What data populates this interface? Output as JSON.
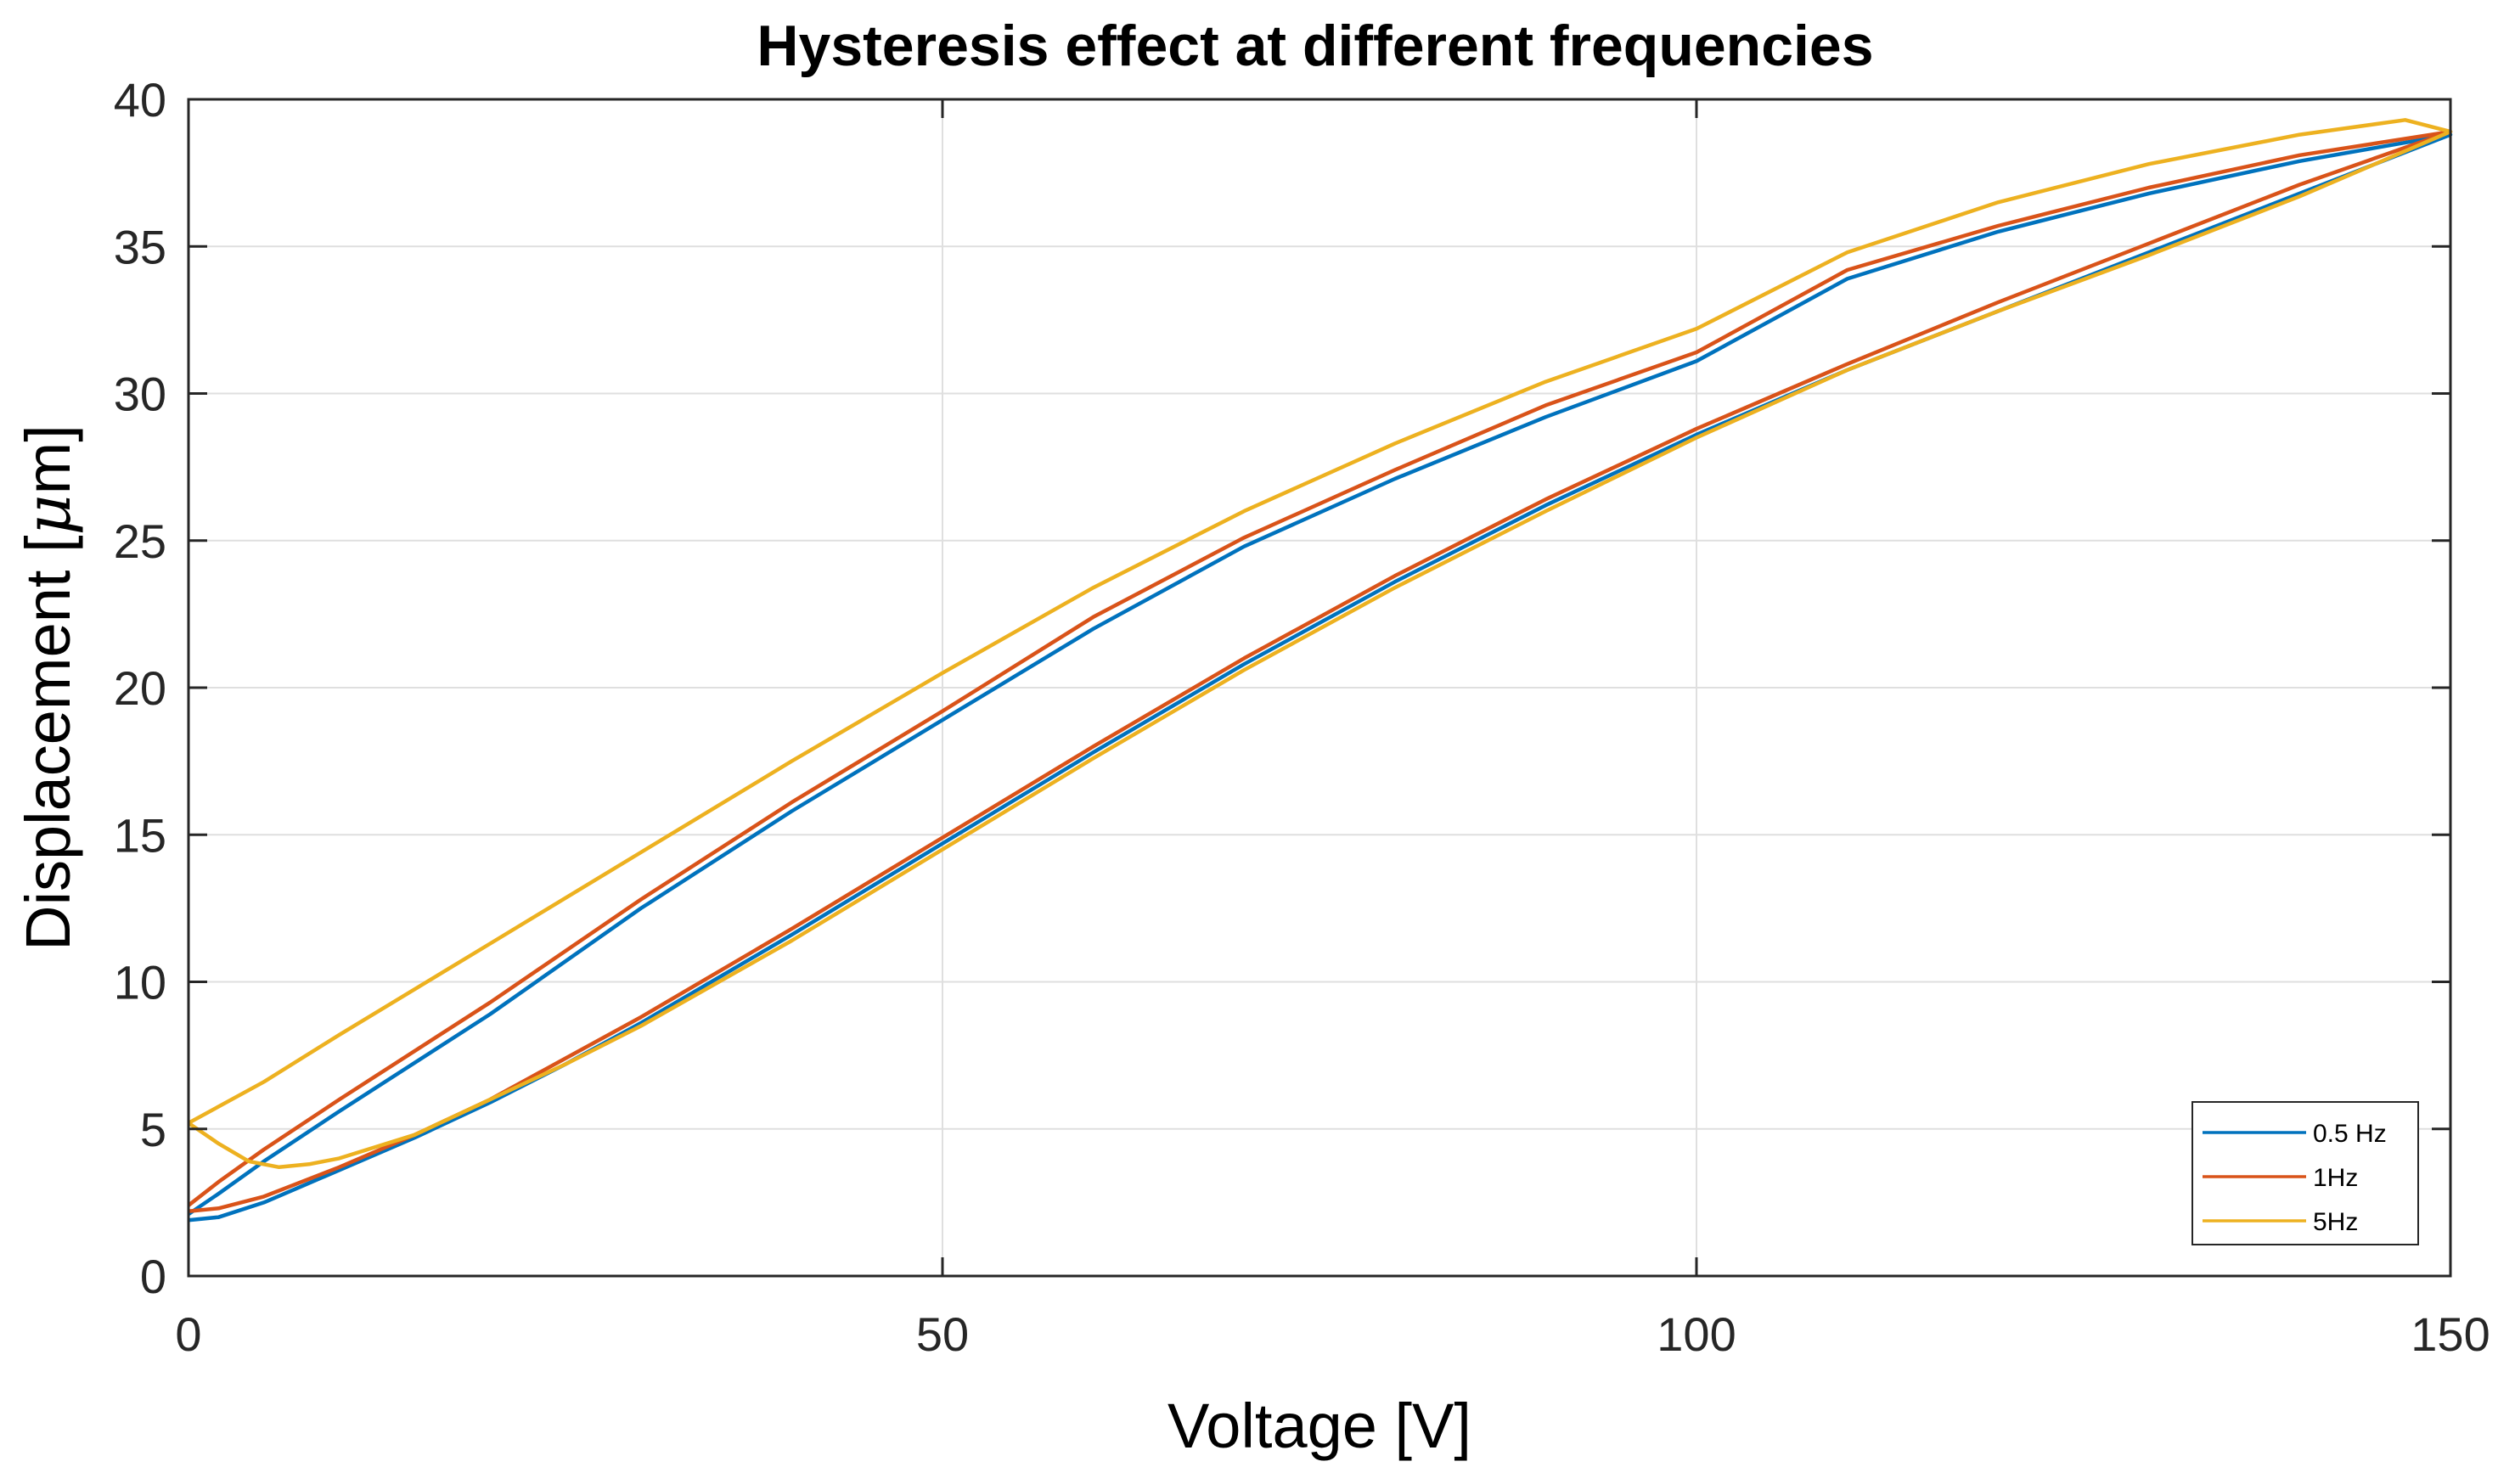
{
  "chart_data": {
    "type": "line",
    "title": "Hysteresis effect at different frequencies",
    "xlabel": "Voltage [V]",
    "ylabel_parts": {
      "prefix": "Displacement [",
      "mu": "μ",
      "suffix": "m]"
    },
    "xlim": [
      0,
      150
    ],
    "ylim": [
      0,
      40
    ],
    "xticks": [
      0,
      50,
      100,
      150
    ],
    "xtick_labels": [
      "0",
      "50",
      "100",
      "150"
    ],
    "yticks": [
      0,
      5,
      10,
      15,
      20,
      25,
      30,
      35,
      40
    ],
    "ytick_labels": [
      "0",
      "5",
      "10",
      "15",
      "20",
      "25",
      "30",
      "35",
      "40"
    ],
    "grid": true,
    "legend_location": "bottom-right",
    "series": [
      {
        "name": "0.5 Hz",
        "color": "#0072BD",
        "ascending": {
          "x": [
            0,
            2,
            5,
            10,
            15,
            20,
            25,
            30,
            40,
            50,
            60,
            70,
            80,
            90,
            100,
            110,
            120,
            130,
            140,
            150
          ],
          "y": [
            1.9,
            2.0,
            2.5,
            3.6,
            4.7,
            5.9,
            7.2,
            8.6,
            11.6,
            14.7,
            17.8,
            20.8,
            23.6,
            26.2,
            28.6,
            30.8,
            32.8,
            34.8,
            36.8,
            38.8
          ]
        },
        "descending": {
          "x": [
            150,
            140,
            130,
            120,
            110,
            100,
            90,
            80,
            70,
            60,
            50,
            40,
            30,
            20,
            10,
            5,
            2,
            0
          ],
          "y": [
            38.8,
            37.9,
            36.8,
            35.5,
            33.9,
            31.1,
            29.2,
            27.1,
            24.8,
            22.0,
            18.9,
            15.8,
            12.5,
            8.9,
            5.6,
            3.9,
            2.8,
            2.1
          ]
        }
      },
      {
        "name": "1Hz",
        "color": "#D95319",
        "ascending": {
          "x": [
            0,
            2,
            5,
            10,
            15,
            20,
            25,
            30,
            40,
            50,
            60,
            70,
            80,
            90,
            100,
            110,
            120,
            130,
            140,
            150
          ],
          "y": [
            2.2,
            2.3,
            2.7,
            3.7,
            4.8,
            6.0,
            7.4,
            8.8,
            11.8,
            14.9,
            18.0,
            21.0,
            23.8,
            26.4,
            28.8,
            31.0,
            33.1,
            35.1,
            37.1,
            38.9
          ]
        },
        "descending": {
          "x": [
            150,
            140,
            130,
            120,
            110,
            100,
            90,
            80,
            70,
            60,
            50,
            40,
            30,
            20,
            10,
            5,
            2,
            0
          ],
          "y": [
            38.9,
            38.1,
            37.0,
            35.7,
            34.2,
            31.4,
            29.6,
            27.4,
            25.1,
            22.4,
            19.2,
            16.1,
            12.8,
            9.3,
            6.0,
            4.3,
            3.2,
            2.4
          ]
        }
      },
      {
        "name": "5Hz",
        "color": "#EDB120",
        "ascending": {
          "x": [
            0,
            2,
            4,
            6,
            8,
            10,
            15,
            20,
            25,
            30,
            40,
            50,
            60,
            70,
            80,
            90,
            100,
            110,
            120,
            130,
            140,
            150
          ],
          "y": [
            5.2,
            4.5,
            3.9,
            3.7,
            3.8,
            4.0,
            4.8,
            6.0,
            7.2,
            8.5,
            11.4,
            14.5,
            17.6,
            20.6,
            23.4,
            26.0,
            28.5,
            30.8,
            32.8,
            34.7,
            36.7,
            38.9
          ]
        },
        "descending": {
          "x": [
            150,
            147,
            140,
            130,
            120,
            110,
            100,
            90,
            80,
            70,
            60,
            50,
            40,
            30,
            20,
            10,
            5,
            0
          ],
          "y": [
            38.9,
            39.3,
            38.8,
            37.8,
            36.5,
            34.8,
            32.2,
            30.4,
            28.3,
            26.0,
            23.4,
            20.5,
            17.5,
            14.4,
            11.3,
            8.2,
            6.6,
            5.2
          ]
        }
      }
    ]
  }
}
